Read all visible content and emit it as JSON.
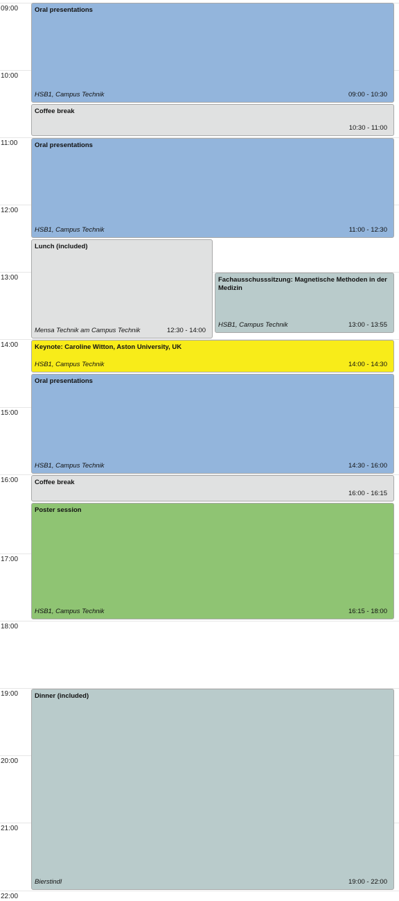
{
  "colors": {
    "oral": "#93b5dc",
    "break": "#e0e1e1",
    "meeting": "#b9cbcb",
    "keynote": "#f8ec19",
    "poster": "#8fc473"
  },
  "hours": [
    "09:00",
    "10:00",
    "11:00",
    "12:00",
    "13:00",
    "14:00",
    "15:00",
    "16:00",
    "17:00",
    "18:00",
    "19:00",
    "20:00",
    "21:00",
    "22:00"
  ],
  "events": [
    {
      "title": "Oral presentations",
      "location": "HSB1, Campus Technik",
      "time": "09:00 - 10:30",
      "color": "#93b5dc"
    },
    {
      "title": "Coffee break",
      "location": "",
      "time": "10:30 - 11:00",
      "color": "#e0e1e1"
    },
    {
      "title": "Oral presentations",
      "location": "HSB1, Campus Technik",
      "time": "11:00 - 12:30",
      "color": "#93b5dc"
    },
    {
      "title": "Lunch (included)",
      "location": "Mensa Technik am Campus Technik",
      "time": "12:30 - 14:00",
      "color": "#e0e1e1"
    },
    {
      "title": "Fachausschusssitzung: Magnetische Methoden in der Medizin",
      "location": "HSB1, Campus Technik",
      "time": "13:00 - 13:55",
      "color": "#b9cbcb"
    },
    {
      "title": "Keynote: Caroline Witton, Aston University, UK",
      "location": "HSB1, Campus Technik",
      "time": "14:00 - 14:30",
      "color": "#f8ec19"
    },
    {
      "title": "Oral presentations",
      "location": "HSB1, Campus Technik",
      "time": "14:30 - 16:00",
      "color": "#93b5dc"
    },
    {
      "title": "Coffee break",
      "location": "",
      "time": "16:00 - 16:15",
      "color": "#e0e1e1"
    },
    {
      "title": "Poster session",
      "location": "HSB1, Campus Technik",
      "time": "16:15 - 18:00",
      "color": "#8fc473"
    },
    {
      "title": "Dinner (included)",
      "location": "Bierstindl",
      "time": "19:00 - 22:00",
      "color": "#b9cbcb"
    }
  ]
}
